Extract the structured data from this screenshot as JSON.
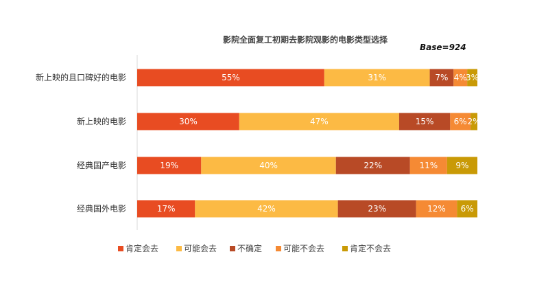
{
  "chart_data": {
    "type": "bar",
    "orientation": "horizontal",
    "stacked": true,
    "title": "影院全面复工初期去影院观影的电影类型选择",
    "annotation": "Base=924",
    "categories": [
      "新上映的且口碑好的电影",
      "新上映的电影",
      "经典国产电影",
      "经典国外电影"
    ],
    "series": [
      {
        "name": "肯定会去",
        "color": "#E84C22",
        "values": [
          55,
          30,
          19,
          17
        ],
        "labels": [
          "55%",
          "30%",
          "19%",
          "17%"
        ]
      },
      {
        "name": "可能会去",
        "color": "#FCBA44",
        "values": [
          31,
          47,
          40,
          42
        ],
        "labels": [
          "31%",
          "47%",
          "40%",
          "42%"
        ]
      },
      {
        "name": "不确定",
        "color": "#B84A26",
        "values": [
          7,
          15,
          22,
          23
        ],
        "labels": [
          "7%",
          "15%",
          "22%",
          "23%"
        ]
      },
      {
        "name": "可能不会去",
        "color": "#F58A34",
        "values": [
          4,
          6,
          11,
          12
        ],
        "labels": [
          "4%",
          "6%",
          "11%",
          "12%"
        ]
      },
      {
        "name": "肯定不会去",
        "color": "#C99A06",
        "values": [
          3,
          2,
          9,
          6
        ],
        "labels": [
          "3%",
          "2%",
          "9%",
          "6%"
        ]
      }
    ],
    "legend_position": "bottom",
    "grid": false
  }
}
